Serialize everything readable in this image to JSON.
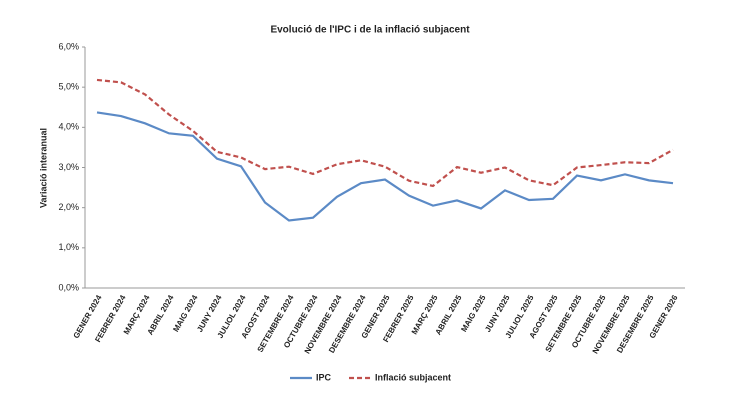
{
  "chart_data": {
    "type": "line",
    "title": "Evolució de l'IPC i de la inflació subjacent",
    "y_label": "Variació interanual",
    "categories": [
      "GENER 2024",
      "FEBRER 2024",
      "MARÇ 2024",
      "ABRIL 2024",
      "MAIG 2024",
      "JUNY 2024",
      "JULIOL 2024",
      "AGOST 2024",
      "SETEMBRE 2024",
      "OCTUBRE 2024",
      "NOVEMBRE 2024",
      "DESEMBRE 2024",
      "GENER 2025",
      "FEBRER 2025",
      "MARÇ 2025",
      "ABRIL 2025",
      "MAIG 2025",
      "JUNY 2025",
      "JULIOL 2025",
      "AGOST 2025",
      "SETEMBRE 2025",
      "OCTUBRE 2025",
      "NOVEMBRE 2025",
      "DESEMBRE 2025",
      "GENER 2026"
    ],
    "series": [
      {
        "name": "IPC",
        "color": "#5b8ac6",
        "line_style": "solid",
        "values": [
          4.37,
          4.28,
          4.1,
          3.85,
          3.79,
          3.22,
          3.03,
          2.13,
          1.68,
          1.75,
          2.27,
          2.61,
          2.7,
          2.3,
          2.05,
          2.18,
          1.98,
          2.43,
          2.19,
          2.22,
          2.8,
          2.68,
          2.83,
          2.68,
          2.61
        ]
      },
      {
        "name": "Inflació subjacent",
        "color": "#c0504d",
        "line_style": "dashed",
        "values": [
          5.18,
          5.12,
          4.82,
          4.32,
          3.91,
          3.39,
          3.25,
          2.96,
          3.02,
          2.84,
          3.08,
          3.18,
          3.02,
          2.67,
          2.54,
          3.01,
          2.87,
          3.0,
          2.68,
          2.56,
          3.0,
          3.06,
          3.13,
          3.11,
          3.44
        ]
      }
    ],
    "ylim": [
      0,
      6
    ],
    "yticks": [
      {
        "value": 0,
        "label": "0,0%"
      },
      {
        "value": 1,
        "label": "1,0%"
      },
      {
        "value": 2,
        "label": "2,0%"
      },
      {
        "value": 3,
        "label": "3,0%"
      },
      {
        "value": 4,
        "label": "4,0%"
      },
      {
        "value": 5,
        "label": "5,0%"
      },
      {
        "value": 6,
        "label": "6,0%"
      }
    ],
    "grid": false,
    "legend": "bottom"
  }
}
